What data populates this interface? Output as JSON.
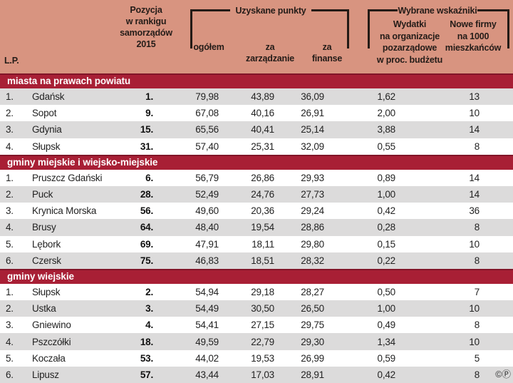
{
  "header_display": {
    "lp": "L.P.",
    "rank": "Pozycja\nw rankigu\nsamorządów\n2015",
    "points_group": "Uzyskane punkty",
    "total": "ogółem",
    "management": "za\nzarządzanie",
    "finance": "za\nfinanse",
    "indicators_group": "Wybrane wskaźniki",
    "ngo": "Wydatki\nna organizacje\npozarządowe\nw proc. budżetu",
    "firms": "Nowe firmy\nna 1000\nmieszkańców"
  },
  "footer": {
    "copyright_symbols": "©Ⓟ"
  },
  "colors": {
    "header_background": "#d89480",
    "section_bar": "#a81f35",
    "row_gray": "#dcdbdb",
    "row_white": "#ffffff",
    "text_dark": "#241c18",
    "section_text": "#ffffff"
  },
  "chart_data": {
    "type": "table",
    "columns": [
      "L.P.",
      "",
      "Pozycja w rankigu samorządów 2015",
      "ogółem",
      "za zarządzanie",
      "za finanse",
      "Wydatki na organizacje pozarządowe w proc. budżetu",
      "Nowe firmy na 1000 mieszkańców"
    ],
    "column_groups": [
      {
        "label": "Uzyskane punkty",
        "columns": [
          "ogółem",
          "za zarządzanie",
          "za finanse"
        ]
      },
      {
        "label": "Wybrane wskaźniki",
        "columns": [
          "Wydatki na organizacje pozarządowe w proc. budżetu",
          "Nowe firmy na 1000 mieszkańców"
        ]
      }
    ],
    "sections": [
      {
        "title": "miasta na prawach powiatu",
        "first_row_shade": "gray",
        "rows": [
          {
            "lp": "1.",
            "name": "Gdańsk",
            "rank": "1.",
            "total": "79,98",
            "management": "43,89",
            "finance": "36,09",
            "ngo": "1,62",
            "firms": "13"
          },
          {
            "lp": "2.",
            "name": "Sopot",
            "rank": "9.",
            "total": "67,08",
            "management": "40,16",
            "finance": "26,91",
            "ngo": "2,00",
            "firms": "10"
          },
          {
            "lp": "3.",
            "name": "Gdynia",
            "rank": "15.",
            "total": "65,56",
            "management": "40,41",
            "finance": "25,14",
            "ngo": "3,88",
            "firms": "14"
          },
          {
            "lp": "4.",
            "name": "Słupsk",
            "rank": "31.",
            "total": "57,40",
            "management": "25,31",
            "finance": "32,09",
            "ngo": "0,55",
            "firms": "8"
          }
        ]
      },
      {
        "title": "gminy miejskie i wiejsko-miejskie",
        "first_row_shade": "white",
        "rows": [
          {
            "lp": "1.",
            "name": "Pruszcz Gdański",
            "rank": "6.",
            "total": "56,79",
            "management": "26,86",
            "finance": "29,93",
            "ngo": "0,89",
            "firms": "14"
          },
          {
            "lp": "2.",
            "name": "Puck",
            "rank": "28.",
            "total": "52,49",
            "management": "24,76",
            "finance": "27,73",
            "ngo": "1,00",
            "firms": "14"
          },
          {
            "lp": "3.",
            "name": "Krynica Morska",
            "rank": "56.",
            "total": "49,60",
            "management": "20,36",
            "finance": "29,24",
            "ngo": "0,42",
            "firms": "36"
          },
          {
            "lp": "4.",
            "name": "Brusy",
            "rank": "64.",
            "total": "48,40",
            "management": "19,54",
            "finance": "28,86",
            "ngo": "0,28",
            "firms": "8"
          },
          {
            "lp": "5.",
            "name": "Lębork",
            "rank": "69.",
            "total": "47,91",
            "management": "18,11",
            "finance": "29,80",
            "ngo": "0,15",
            "firms": "10"
          },
          {
            "lp": "6.",
            "name": "Czersk",
            "rank": "75.",
            "total": "46,83",
            "management": "18,51",
            "finance": "28,32",
            "ngo": "0,22",
            "firms": "8"
          }
        ]
      },
      {
        "title": "gminy wiejskie",
        "first_row_shade": "white",
        "rows": [
          {
            "lp": "1.",
            "name": "Słupsk",
            "rank": "2.",
            "total": "54,94",
            "management": "29,18",
            "finance": "28,27",
            "ngo": "0,50",
            "firms": "7"
          },
          {
            "lp": "2.",
            "name": "Ustka",
            "rank": "3.",
            "total": "54,49",
            "management": "30,50",
            "finance": "26,50",
            "ngo": "1,00",
            "firms": "10"
          },
          {
            "lp": "3.",
            "name": "Gniewino",
            "rank": "4.",
            "total": "54,41",
            "management": "27,15",
            "finance": "29,75",
            "ngo": "0,49",
            "firms": "8"
          },
          {
            "lp": "4.",
            "name": "Pszczółki",
            "rank": "18.",
            "total": "49,59",
            "management": "22,79",
            "finance": "29,30",
            "ngo": "1,34",
            "firms": "10"
          },
          {
            "lp": "5.",
            "name": "Koczała",
            "rank": "53.",
            "total": "44,02",
            "management": "19,53",
            "finance": "26,99",
            "ngo": "0,59",
            "firms": "5"
          },
          {
            "lp": "6.",
            "name": "Lipusz",
            "rank": "57.",
            "total": "43,44",
            "management": "17,03",
            "finance": "28,91",
            "ngo": "0,42",
            "firms": "8"
          }
        ]
      }
    ]
  }
}
